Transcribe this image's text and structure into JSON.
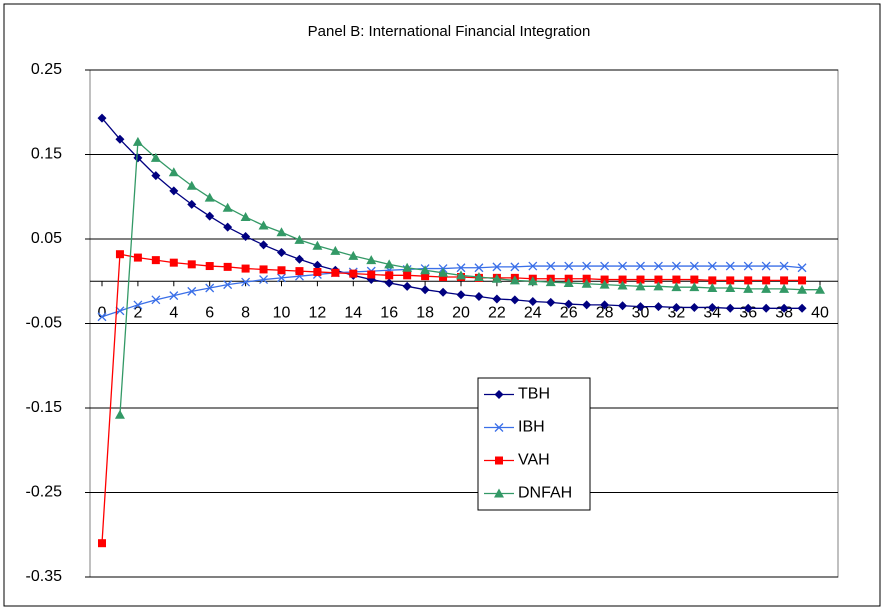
{
  "chart_data": {
    "type": "line",
    "title": "Panel B: International Financial Integration",
    "x": [
      0,
      1,
      2,
      3,
      4,
      5,
      6,
      7,
      8,
      9,
      10,
      11,
      12,
      13,
      14,
      15,
      16,
      17,
      18,
      19,
      20,
      21,
      22,
      23,
      24,
      25,
      26,
      27,
      28,
      29,
      30,
      31,
      32,
      33,
      34,
      35,
      36,
      37,
      38,
      39,
      40
    ],
    "series": [
      {
        "name": "TBH",
        "color": "#000080",
        "marker": "diamond",
        "values": [
          0.193,
          0.168,
          0.146,
          0.125,
          0.107,
          0.091,
          0.077,
          0.064,
          0.053,
          0.043,
          0.034,
          0.026,
          0.019,
          0.013,
          0.007,
          0.002,
          -0.002,
          -0.006,
          -0.01,
          -0.013,
          -0.016,
          -0.018,
          -0.021,
          -0.022,
          -0.024,
          -0.025,
          -0.027,
          -0.028,
          -0.028,
          -0.029,
          -0.03,
          -0.03,
          -0.031,
          -0.031,
          -0.031,
          -0.032,
          -0.032,
          -0.032,
          -0.032,
          -0.032,
          null
        ]
      },
      {
        "name": "IBH",
        "color": "#3a6fe8",
        "marker": "x",
        "values": [
          -0.042,
          -0.035,
          -0.028,
          -0.022,
          -0.017,
          -0.012,
          -0.008,
          -0.004,
          -0.001,
          0.002,
          0.004,
          0.006,
          0.008,
          0.01,
          0.011,
          0.012,
          0.013,
          0.014,
          0.015,
          0.015,
          0.016,
          0.016,
          0.017,
          0.017,
          0.018,
          0.018,
          0.018,
          0.018,
          0.018,
          0.018,
          0.018,
          0.018,
          0.018,
          0.018,
          0.018,
          0.018,
          0.018,
          0.018,
          0.018,
          0.016,
          null
        ]
      },
      {
        "name": "VAH",
        "color": "#ff0000",
        "marker": "square",
        "values": [
          -0.31,
          0.032,
          0.028,
          0.025,
          0.022,
          0.02,
          0.018,
          0.017,
          0.015,
          0.014,
          0.013,
          0.012,
          0.011,
          0.01,
          0.009,
          0.008,
          0.007,
          0.007,
          0.006,
          0.005,
          0.005,
          0.004,
          0.004,
          0.004,
          0.003,
          0.003,
          0.003,
          0.003,
          0.002,
          0.002,
          0.002,
          0.002,
          0.002,
          0.002,
          0.001,
          0.001,
          0.001,
          0.001,
          0.001,
          0.001,
          null
        ]
      },
      {
        "name": "DNFAH",
        "color": "#339966",
        "marker": "triangle",
        "values": [
          null,
          -0.158,
          0.165,
          0.146,
          0.129,
          0.113,
          0.099,
          0.087,
          0.076,
          0.066,
          0.058,
          0.049,
          0.042,
          0.036,
          0.03,
          0.025,
          0.02,
          0.016,
          0.013,
          0.01,
          0.007,
          0.005,
          0.003,
          0.001,
          0,
          -0.001,
          -0.002,
          -0.003,
          -0.004,
          -0.005,
          -0.006,
          -0.006,
          -0.007,
          -0.007,
          -0.008,
          -0.008,
          -0.009,
          -0.009,
          -0.009,
          -0.01,
          -0.01
        ]
      }
    ],
    "xlim": [
      0,
      40
    ],
    "xticks": [
      0,
      2,
      4,
      6,
      8,
      10,
      12,
      14,
      16,
      18,
      20,
      22,
      24,
      26,
      28,
      30,
      32,
      34,
      36,
      38,
      40
    ],
    "ylim": [
      -0.35,
      0.25
    ],
    "yticks": [
      0.25,
      0.15,
      0.05,
      -0.05,
      -0.15,
      -0.25,
      -0.35
    ],
    "grid": true
  }
}
